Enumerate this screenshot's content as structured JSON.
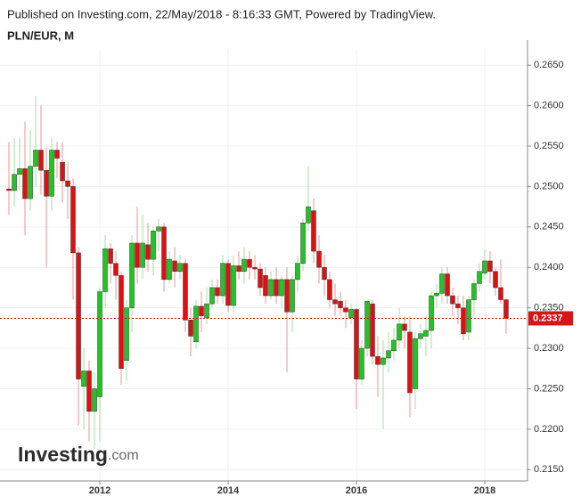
{
  "chart_data": {
    "type": "candlestick",
    "header": "Published on Investing.com, 22/May/2018 - 8:16:33 GMT, Powered by TradingView.",
    "title": "PLN/EUR, M",
    "watermark": [
      "Investing",
      ".com"
    ],
    "up_color": "#21c521",
    "down_color": "#e01010",
    "grid": true,
    "xlim": [
      2010.444,
      2018.667
    ],
    "xticks": [
      2012,
      2014,
      2016,
      2018
    ],
    "ylim": [
      0.2136,
      0.267
    ],
    "yticks": [
      {
        "value": 0.215,
        "label": "0.2150"
      },
      {
        "value": 0.22,
        "label": "0.2200"
      },
      {
        "value": 0.225,
        "label": "0.2250"
      },
      {
        "value": 0.23,
        "label": "0.2300"
      },
      {
        "value": 0.235,
        "label": "0.2350"
      },
      {
        "value": 0.24,
        "label": "0.2400"
      },
      {
        "value": 0.245,
        "label": "0.2450"
      },
      {
        "value": 0.25,
        "label": "0.2500"
      },
      {
        "value": 0.255,
        "label": "0.2550"
      },
      {
        "value": 0.26,
        "label": "0.2600"
      },
      {
        "value": 0.265,
        "label": "0.2650"
      }
    ],
    "last_price": 0.2337,
    "last_price_color": "#d81414",
    "x": [
      2010.583,
      2010.667,
      2010.75,
      2010.833,
      2010.917,
      2011,
      2011.083,
      2011.167,
      2011.25,
      2011.333,
      2011.417,
      2011.5,
      2011.583,
      2011.667,
      2011.75,
      2011.833,
      2011.917,
      2012,
      2012.083,
      2012.167,
      2012.25,
      2012.333,
      2012.417,
      2012.5,
      2012.583,
      2012.667,
      2012.75,
      2012.833,
      2012.917,
      2013,
      2013.083,
      2013.167,
      2013.25,
      2013.333,
      2013.417,
      2013.5,
      2013.583,
      2013.667,
      2013.75,
      2013.833,
      2013.917,
      2014,
      2014.083,
      2014.167,
      2014.25,
      2014.333,
      2014.417,
      2014.5,
      2014.583,
      2014.667,
      2014.75,
      2014.833,
      2014.917,
      2015,
      2015.083,
      2015.167,
      2015.25,
      2015.333,
      2015.417,
      2015.5,
      2015.583,
      2015.667,
      2015.75,
      2015.833,
      2015.917,
      2016,
      2016.083,
      2016.167,
      2016.25,
      2016.333,
      2016.417,
      2016.5,
      2016.583,
      2016.667,
      2016.75,
      2016.833,
      2016.917,
      2017,
      2017.083,
      2017.167,
      2017.25,
      2017.333,
      2017.417,
      2017.5,
      2017.583,
      2017.667,
      2017.75,
      2017.833,
      2017.917,
      2018,
      2018.083,
      2018.167,
      2018.25,
      2018.333
    ],
    "open": [
      0.2497,
      0.2495,
      0.2515,
      0.2522,
      0.2485,
      0.2525,
      0.2545,
      0.252,
      0.2488,
      0.2545,
      0.253,
      0.2507,
      0.25,
      0.2418,
      0.2253,
      0.2272,
      0.2222,
      0.224,
      0.237,
      0.2423,
      0.2405,
      0.239,
      0.2285,
      0.235,
      0.243,
      0.24,
      0.2428,
      0.241,
      0.2445,
      0.245,
      0.2385,
      0.2408,
      0.2395,
      0.2405,
      0.2335,
      0.2308,
      0.2352,
      0.2338,
      0.2355,
      0.2375,
      0.2365,
      0.2405,
      0.2353,
      0.2402,
      0.2395,
      0.241,
      0.24,
      0.2398,
      0.239,
      0.2365,
      0.2385,
      0.2365,
      0.2385,
      0.2345,
      0.2385,
      0.2405,
      0.2455,
      0.247,
      0.242,
      0.24,
      0.2385,
      0.236,
      0.2358,
      0.235,
      0.2338,
      0.2348,
      0.2262,
      0.23,
      0.2355,
      0.229,
      0.228,
      0.2288,
      0.2297,
      0.231,
      0.233,
      0.232,
      0.225,
      0.2312,
      0.2315,
      0.2322,
      0.2365,
      0.2368,
      0.2392,
      0.2365,
      0.2355,
      0.235,
      0.232,
      0.236,
      0.238,
      0.2393,
      0.2408,
      0.2395,
      0.2375,
      0.236
    ],
    "high": [
      0.2555,
      0.256,
      0.256,
      0.258,
      0.257,
      0.2612,
      0.26,
      0.2548,
      0.256,
      0.2555,
      0.2555,
      0.253,
      0.251,
      0.2425,
      0.23,
      0.2285,
      0.227,
      0.2375,
      0.244,
      0.243,
      0.242,
      0.2395,
      0.236,
      0.244,
      0.2475,
      0.2465,
      0.2455,
      0.245,
      0.246,
      0.2455,
      0.242,
      0.2425,
      0.2415,
      0.241,
      0.235,
      0.236,
      0.237,
      0.2375,
      0.2385,
      0.2385,
      0.2415,
      0.241,
      0.2415,
      0.242,
      0.2425,
      0.242,
      0.2415,
      0.2405,
      0.24,
      0.2395,
      0.24,
      0.239,
      0.24,
      0.239,
      0.2415,
      0.246,
      0.2525,
      0.2485,
      0.244,
      0.2415,
      0.2395,
      0.238,
      0.237,
      0.236,
      0.2355,
      0.235,
      0.231,
      0.236,
      0.236,
      0.2315,
      0.231,
      0.232,
      0.2325,
      0.235,
      0.234,
      0.234,
      0.232,
      0.233,
      0.234,
      0.237,
      0.238,
      0.24,
      0.24,
      0.2375,
      0.2365,
      0.2365,
      0.2365,
      0.2385,
      0.2405,
      0.2422,
      0.242,
      0.24,
      0.241,
      0.2362
    ],
    "low": [
      0.2465,
      0.2475,
      0.2495,
      0.244,
      0.247,
      0.25,
      0.249,
      0.24,
      0.247,
      0.251,
      0.248,
      0.246,
      0.236,
      0.2205,
      0.22,
      0.2185,
      0.2175,
      0.2185,
      0.235,
      0.238,
      0.236,
      0.2255,
      0.226,
      0.232,
      0.238,
      0.2385,
      0.2395,
      0.239,
      0.242,
      0.237,
      0.238,
      0.2375,
      0.2385,
      0.232,
      0.229,
      0.23,
      0.232,
      0.233,
      0.235,
      0.2355,
      0.2355,
      0.2345,
      0.2345,
      0.2385,
      0.238,
      0.2385,
      0.2385,
      0.2365,
      0.2355,
      0.236,
      0.2355,
      0.235,
      0.227,
      0.232,
      0.237,
      0.2395,
      0.2445,
      0.2405,
      0.238,
      0.2365,
      0.235,
      0.234,
      0.234,
      0.2325,
      0.233,
      0.2225,
      0.2255,
      0.229,
      0.228,
      0.224,
      0.22,
      0.227,
      0.2285,
      0.23,
      0.23,
      0.2215,
      0.2225,
      0.23,
      0.229,
      0.23,
      0.235,
      0.2355,
      0.2355,
      0.234,
      0.233,
      0.231,
      0.231,
      0.234,
      0.237,
      0.2385,
      0.238,
      0.2365,
      0.2355,
      0.2318
    ],
    "close": [
      0.2495,
      0.2515,
      0.2522,
      0.2485,
      0.2525,
      0.2545,
      0.252,
      0.2488,
      0.2545,
      0.2535,
      0.2507,
      0.25,
      0.2418,
      0.2262,
      0.2272,
      0.2222,
      0.225,
      0.237,
      0.2423,
      0.2405,
      0.239,
      0.2275,
      0.235,
      0.243,
      0.24,
      0.243,
      0.241,
      0.2445,
      0.245,
      0.2385,
      0.241,
      0.2395,
      0.2405,
      0.2335,
      0.2315,
      0.2352,
      0.234,
      0.2355,
      0.2375,
      0.2365,
      0.2405,
      0.2353,
      0.2402,
      0.2395,
      0.241,
      0.24,
      0.2398,
      0.2375,
      0.2365,
      0.2385,
      0.2365,
      0.2385,
      0.2345,
      0.2385,
      0.2405,
      0.2455,
      0.2475,
      0.242,
      0.24,
      0.2385,
      0.236,
      0.2355,
      0.235,
      0.2345,
      0.2348,
      0.2262,
      0.23,
      0.2358,
      0.229,
      0.228,
      0.2288,
      0.2297,
      0.231,
      0.233,
      0.2322,
      0.2245,
      0.2312,
      0.2318,
      0.2322,
      0.2365,
      0.2368,
      0.2392,
      0.2365,
      0.2355,
      0.235,
      0.2318,
      0.236,
      0.238,
      0.2395,
      0.2408,
      0.2395,
      0.2375,
      0.236,
      0.2337
    ]
  }
}
